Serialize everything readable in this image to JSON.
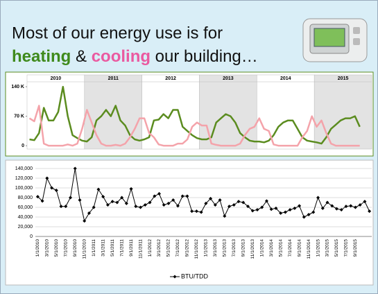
{
  "slide": {
    "title_line1": "Most of our energy use is for",
    "title_heating": "heating",
    "title_and": " & ",
    "title_cooling": "cooling",
    "title_rest": " our building…"
  },
  "chart_data": [
    {
      "type": "line",
      "year_bands": [
        "2010",
        "2011",
        "2012",
        "2013",
        "2014",
        "2015"
      ],
      "ylim": [
        -8,
        150
      ],
      "yticks": [
        0,
        {
          "value": 70,
          "label": "70 K"
        },
        {
          "value": 140,
          "label": "140 K"
        }
      ],
      "grid": false,
      "series": [
        {
          "color": "#5b8c1f",
          "values": [
            15,
            13,
            30,
            90,
            60,
            60,
            80,
            140,
            70,
            25,
            18,
            12,
            10,
            20,
            60,
            70,
            85,
            70,
            95,
            60,
            48,
            25,
            15,
            12,
            15,
            20,
            60,
            62,
            75,
            65,
            85,
            85,
            45,
            35,
            25,
            18,
            15,
            15,
            20,
            55,
            65,
            75,
            70,
            55,
            30,
            20,
            12,
            10,
            10,
            8,
            12,
            25,
            45,
            55,
            60,
            60,
            40,
            20,
            12,
            10,
            8,
            5,
            20,
            40,
            50,
            60,
            65,
            65,
            70,
            45,
            null,
            null
          ]
        },
        {
          "color": "#f4a3aa",
          "values": [
            65,
            58,
            95,
            5,
            0,
            0,
            0,
            0,
            3,
            0,
            5,
            40,
            85,
            55,
            25,
            5,
            0,
            0,
            2,
            0,
            5,
            20,
            40,
            65,
            65,
            30,
            20,
            3,
            0,
            0,
            0,
            5,
            5,
            15,
            45,
            55,
            48,
            48,
            5,
            2,
            0,
            0,
            0,
            0,
            5,
            25,
            40,
            45,
            65,
            40,
            35,
            3,
            0,
            0,
            0,
            0,
            0,
            20,
            35,
            70,
            45,
            60,
            30,
            5,
            0,
            0,
            0,
            0,
            0,
            0,
            null,
            null
          ]
        }
      ]
    },
    {
      "type": "line-markers",
      "ylim": [
        0,
        140000
      ],
      "yticks": [
        0,
        {
          "value": 20000,
          "label": "20,000"
        },
        {
          "value": 40000,
          "label": "40,000"
        },
        {
          "value": 60000,
          "label": "60,000"
        },
        {
          "value": 80000,
          "label": "80,000"
        },
        {
          "value": 100000,
          "label": "100,000"
        },
        {
          "value": 120000,
          "label": "120,000"
        },
        {
          "value": 140000,
          "label": "140,000"
        }
      ],
      "grid": true,
      "legend": "bottom",
      "categories": [
        "1/1/2010",
        null,
        "3/1/2010",
        null,
        "5/1/2010",
        null,
        "7/1/2010",
        null,
        "9/1/2010",
        null,
        "11/1/2010",
        null,
        "1/1/2011",
        null,
        "3/1/2011",
        null,
        "5/1/2011",
        null,
        "7/1/2011",
        null,
        "9/1/2011",
        null,
        "11/1/2011",
        null,
        "1/1/2012",
        null,
        "3/1/2012",
        null,
        "5/1/2012",
        null,
        "7/1/2012",
        null,
        "9/1/2012",
        null,
        "11/1/2012",
        null,
        "1/1/2013",
        null,
        "3/1/2013",
        null,
        "5/1/2013",
        null,
        "7/1/2013",
        null,
        "9/1/2013",
        null,
        "11/1/2013",
        null,
        "1/1/2014",
        null,
        "3/1/2014",
        null,
        "5/1/2014",
        null,
        "7/1/2014",
        null,
        "9/1/2014",
        null,
        "11/1/2014",
        null,
        "1/1/2015",
        null,
        "3/1/2015",
        null,
        "5/1/2015",
        null,
        "7/1/2015",
        null,
        "9/1/2015",
        null,
        null,
        null
      ],
      "series": [
        {
          "name": "BTU/TDD",
          "color": "#000000",
          "values": [
            82000,
            73000,
            120000,
            100000,
            95000,
            62000,
            62000,
            80000,
            140000,
            75000,
            32000,
            48000,
            60000,
            97000,
            82000,
            65000,
            72000,
            70000,
            80000,
            68000,
            98000,
            62000,
            60000,
            65000,
            70000,
            83000,
            88000,
            65000,
            68000,
            75000,
            63000,
            83000,
            83000,
            52000,
            52000,
            50000,
            68000,
            78000,
            65000,
            75000,
            42000,
            62000,
            65000,
            72000,
            70000,
            62000,
            53000,
            55000,
            60000,
            73000,
            56000,
            58000,
            48000,
            50000,
            55000,
            58000,
            63000,
            40000,
            45000,
            50000,
            80000,
            58000,
            70000,
            63000,
            57000,
            55000,
            62000,
            63000,
            60000,
            65000,
            72000,
            52000
          ]
        }
      ]
    }
  ]
}
